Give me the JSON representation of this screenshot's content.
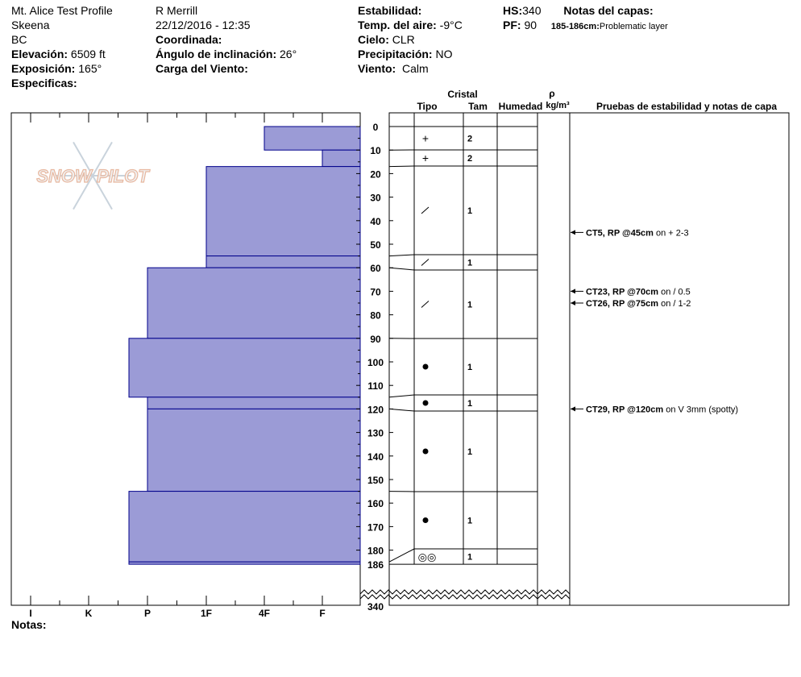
{
  "header": {
    "col1": {
      "name": "Mt. Alice Test Profile",
      "range": "Skeena",
      "state": "BC",
      "elev_label": "Elevación:",
      "elev": "6509 ft",
      "aspect_label": "Exposición:",
      "aspect": "165°",
      "specifics_label": "Especificas:"
    },
    "col2": {
      "observer": "R Merrill",
      "datetime": "22/12/2016 - 12:35",
      "coord_label": "Coordinada:",
      "incline_label": "Ángulo de inclinación:",
      "incline": "26°",
      "wind_load_label": "Carga del Viento:"
    },
    "col3": {
      "stability_label": "Estabilidad:",
      "airtemp_label": "Temp. del aire:",
      "airtemp": "-9°C",
      "sky_label": "Cielo:",
      "sky": "CLR",
      "precip_label": "Precipitación:",
      "precip": "NO",
      "wind_label": "Viento:",
      "wind": "Calm"
    },
    "col4": {
      "hs_label": "HS:",
      "hs": "340",
      "pf_label": "PF:",
      "pf": "90",
      "notes_label": "Notas del capas:",
      "layer_note_label": "185-186cm:",
      "layer_note": "Problematic layer"
    }
  },
  "logo_text": "SNOW PILOT",
  "columns": {
    "cristal": "Cristal",
    "tipo": "Tipo",
    "tam": "Tam",
    "humedad": "Humedad",
    "rho": "ρ",
    "density_unit": "kg/m³",
    "tests": "Pruebas de estabilidad y notas de capa"
  },
  "notas_label": "Notas:",
  "colors": {
    "layer_fill": "#9b9bd6",
    "layer_stroke": "#00008b"
  },
  "chart_data": {
    "type": "bar",
    "title": "",
    "hardness_ticks": [
      "I",
      "K",
      "P",
      "1F",
      "4F",
      "F"
    ],
    "depth_ticks": [
      0,
      10,
      20,
      30,
      40,
      50,
      60,
      70,
      80,
      90,
      100,
      110,
      120,
      130,
      140,
      150,
      160,
      170,
      180
    ],
    "depth_max_label": "340",
    "depth_bottom_label": "186",
    "layers": [
      {
        "top": 0,
        "bottom": 10,
        "hardness": "4F",
        "grain": "+",
        "size": "2"
      },
      {
        "top": 10,
        "bottom": 17,
        "hardness": "F",
        "grain": "+",
        "size": "2"
      },
      {
        "top": 17,
        "bottom": 55,
        "hardness": "1F",
        "grain": "/",
        "size": "1"
      },
      {
        "top": 55,
        "bottom": 60,
        "hardness": "1F",
        "grain": "/",
        "size": "1"
      },
      {
        "top": 60,
        "bottom": 90,
        "hardness": "P",
        "grain": "/",
        "size": "1"
      },
      {
        "top": 90,
        "bottom": 115,
        "hardness": "P-",
        "grain": "●",
        "size": "1"
      },
      {
        "top": 115,
        "bottom": 120,
        "hardness": "P",
        "grain": "●",
        "size": "1"
      },
      {
        "top": 120,
        "bottom": 155,
        "hardness": "P",
        "grain": "●",
        "size": "1"
      },
      {
        "top": 155,
        "bottom": 185,
        "hardness": "P-",
        "grain": "●",
        "size": "1"
      },
      {
        "top": 185,
        "bottom": 186,
        "hardness": "P-",
        "grain": "◎◎",
        "size": "1"
      }
    ],
    "tests": [
      {
        "depth": 45,
        "code": "CT5, RP @45cm",
        "note": "on + 2-3"
      },
      {
        "depth": 70,
        "code": "CT23, RP @70cm",
        "note": "on / 0.5"
      },
      {
        "depth": 75,
        "code": "CT26, RP @75cm",
        "note": "on / 1-2"
      },
      {
        "depth": 120,
        "code": "CT29, RP @120cm",
        "note": "on V 3mm (spotty)"
      }
    ]
  }
}
